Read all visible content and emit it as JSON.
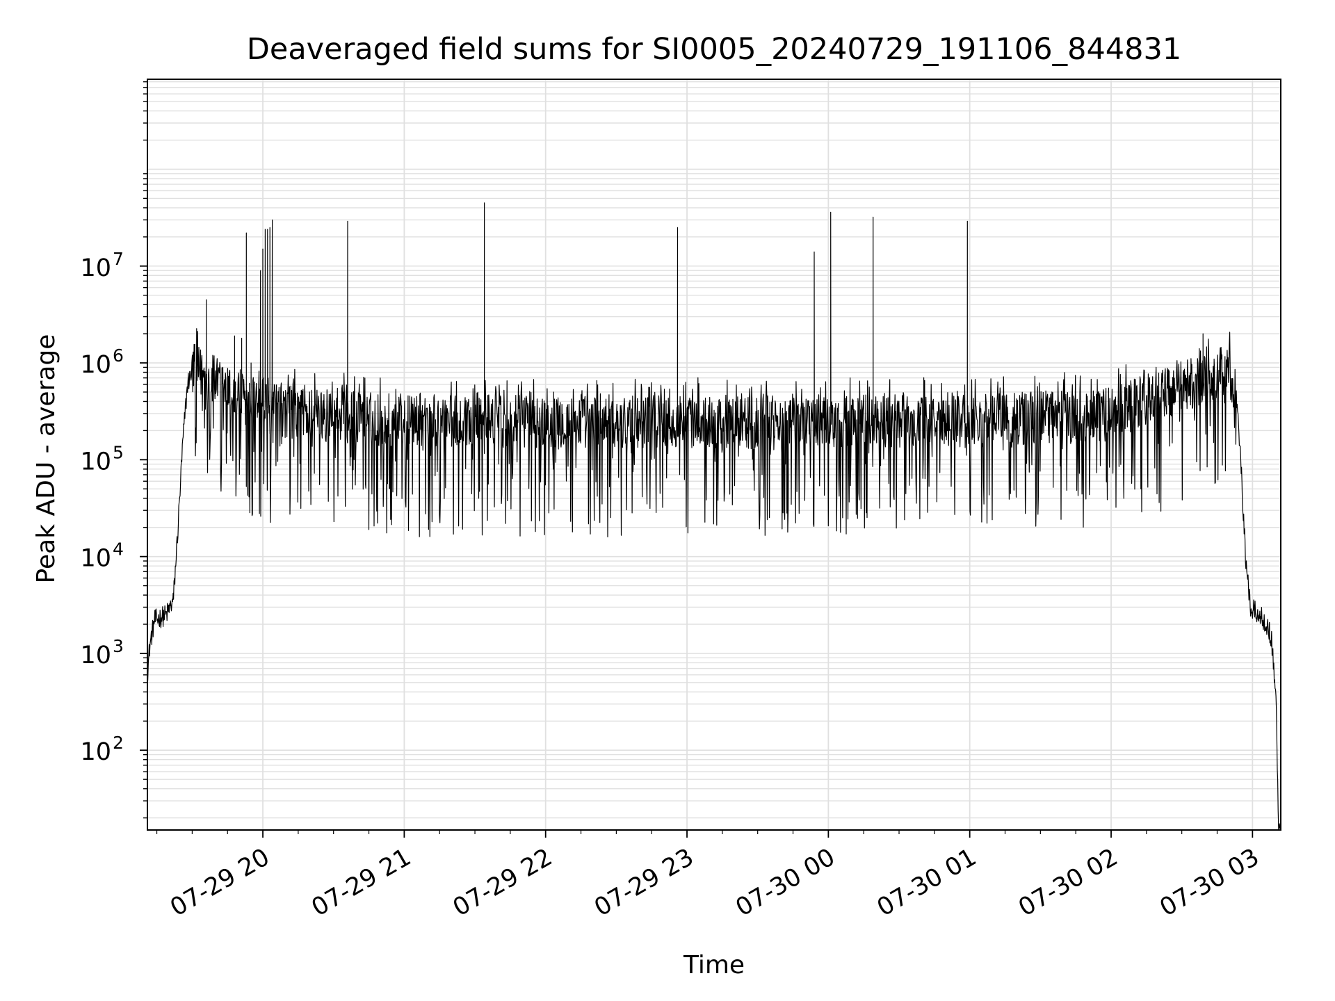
{
  "chart_data": {
    "type": "line",
    "title": "Deaveraged field sums for SI0005_20240729_191106_844831",
    "xlabel": "Time",
    "ylabel": "Peak ADU - average",
    "y_scale": "log",
    "ylim": [
      15,
      850000000
    ],
    "xlim": [
      "2024-07-29 19:11",
      "2024-07-30 03:12"
    ],
    "grid": "major and minor, both axes",
    "line_color": "#000000",
    "grid_color": "#e0e0e0",
    "x_ticks": [
      {
        "value": "2024-07-29 20:00",
        "label": "07-29 20"
      },
      {
        "value": "2024-07-29 21:00",
        "label": "07-29 21"
      },
      {
        "value": "2024-07-29 22:00",
        "label": "07-29 22"
      },
      {
        "value": "2024-07-29 23:00",
        "label": "07-29 23"
      },
      {
        "value": "2024-07-30 00:00",
        "label": "07-30 00"
      },
      {
        "value": "2024-07-30 01:00",
        "label": "07-30 01"
      },
      {
        "value": "2024-07-30 02:00",
        "label": "07-30 02"
      },
      {
        "value": "2024-07-30 03:00",
        "label": "07-30 03"
      }
    ],
    "y_ticks": [
      {
        "value": 100,
        "base": "10",
        "exp": "2"
      },
      {
        "value": 1000,
        "base": "10",
        "exp": "3"
      },
      {
        "value": 10000,
        "base": "10",
        "exp": "4"
      },
      {
        "value": 100000,
        "base": "10",
        "exp": "5"
      },
      {
        "value": 1000000,
        "base": "10",
        "exp": "6"
      },
      {
        "value": 10000000,
        "base": "10",
        "exp": "7"
      }
    ],
    "envelope": [
      {
        "x": "2024-07-29 19:11",
        "y": 600
      },
      {
        "x": "2024-07-29 19:12",
        "y": 1200
      },
      {
        "x": "2024-07-29 19:14",
        "y": 2200
      },
      {
        "x": "2024-07-29 19:19",
        "y": 2500
      },
      {
        "x": "2024-07-29 19:22",
        "y": 3500
      },
      {
        "x": "2024-07-29 19:24",
        "y": 20000
      },
      {
        "x": "2024-07-29 19:26",
        "y": 150000
      },
      {
        "x": "2024-07-29 19:28",
        "y": 600000
      },
      {
        "x": "2024-07-29 19:30",
        "y": 850000
      },
      {
        "x": "2024-07-29 19:35",
        "y": 750000
      },
      {
        "x": "2024-07-29 19:45",
        "y": 500000
      },
      {
        "x": "2024-07-29 20:05",
        "y": 320000
      },
      {
        "x": "2024-07-29 21:00",
        "y": 250000
      },
      {
        "x": "2024-07-29 23:00",
        "y": 250000
      },
      {
        "x": "2024-07-30 01:00",
        "y": 250000
      },
      {
        "x": "2024-07-30 02:00",
        "y": 300000
      },
      {
        "x": "2024-07-30 02:30",
        "y": 550000
      },
      {
        "x": "2024-07-30 02:50",
        "y": 850000
      },
      {
        "x": "2024-07-30 02:53",
        "y": 500000
      },
      {
        "x": "2024-07-30 02:55",
        "y": 100000
      },
      {
        "x": "2024-07-30 02:57",
        "y": 10000
      },
      {
        "x": "2024-07-30 02:59",
        "y": 3000
      },
      {
        "x": "2024-07-30 03:05",
        "y": 2200
      },
      {
        "x": "2024-07-30 03:08",
        "y": 1500
      },
      {
        "x": "2024-07-30 03:09",
        "y": 700
      },
      {
        "x": "2024-07-30 03:10",
        "y": 400
      },
      {
        "x": "2024-07-30 03:11",
        "y": 15
      }
    ],
    "spikes": [
      {
        "x": "2024-07-29 19:36",
        "y": 4500000
      },
      {
        "x": "2024-07-29 19:48",
        "y": 1900000
      },
      {
        "x": "2024-07-29 19:51",
        "y": 1800000
      },
      {
        "x": "2024-07-29 19:53",
        "y": 22000000
      },
      {
        "x": "2024-07-29 19:55",
        "y": 1000000
      },
      {
        "x": "2024-07-29 19:59",
        "y": 9000000
      },
      {
        "x": "2024-07-29 20:00",
        "y": 15000000
      },
      {
        "x": "2024-07-29 20:01",
        "y": 24000000
      },
      {
        "x": "2024-07-29 20:02",
        "y": 24000000
      },
      {
        "x": "2024-07-29 20:03",
        "y": 25000000
      },
      {
        "x": "2024-07-29 20:04",
        "y": 30000000
      },
      {
        "x": "2024-07-29 20:36",
        "y": 29000000
      },
      {
        "x": "2024-07-29 21:34",
        "y": 45000000
      },
      {
        "x": "2024-07-29 22:56",
        "y": 25000000
      },
      {
        "x": "2024-07-29 23:54",
        "y": 14000000
      },
      {
        "x": "2024-07-30 00:01",
        "y": 36000000
      },
      {
        "x": "2024-07-30 00:19",
        "y": 32000000
      },
      {
        "x": "2024-07-30 00:59",
        "y": 29000000
      },
      {
        "x": "2024-07-30 02:39",
        "y": 2000000
      }
    ]
  }
}
